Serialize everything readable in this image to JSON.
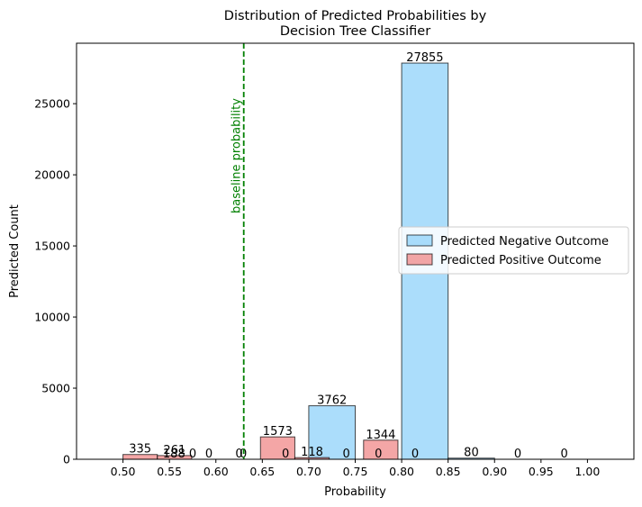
{
  "chart_data": {
    "type": "bar",
    "title": "Distribution of Predicted Probabilities by\nDecision Tree Classifier",
    "xlabel": "Probability",
    "ylabel": "Predicted Count",
    "xlim": [
      0.45,
      1.05
    ],
    "ylim": [
      0,
      29250
    ],
    "xticks": [
      "0.50",
      "0.55",
      "0.60",
      "0.65",
      "0.70",
      "0.75",
      "0.80",
      "0.85",
      "0.90",
      "0.95",
      "1.00"
    ],
    "yticks": [
      "0",
      "5000",
      "10000",
      "15000",
      "20000",
      "25000"
    ],
    "legend_position": "center-right",
    "grid": false,
    "series": [
      {
        "name": "Predicted Negative Outcome",
        "color": "#87cefa",
        "bins": [
          {
            "x0": 0.55,
            "x1": 0.6,
            "value": 0
          },
          {
            "x0": 0.6,
            "x1": 0.65,
            "value": 0
          },
          {
            "x0": 0.65,
            "x1": 0.7,
            "value": 0
          },
          {
            "x0": 0.7,
            "x1": 0.75,
            "value": 3762
          },
          {
            "x0": 0.75,
            "x1": 0.8,
            "value": 0
          },
          {
            "x0": 0.8,
            "x1": 0.85,
            "value": 27855
          },
          {
            "x0": 0.85,
            "x1": 0.9,
            "value": 80
          },
          {
            "x0": 0.9,
            "x1": 0.95,
            "value": 0
          },
          {
            "x0": 0.95,
            "x1": 1.0,
            "value": 0
          }
        ]
      },
      {
        "name": "Predicted Positive Outcome",
        "color": "#f08080",
        "bins": [
          {
            "x0": 0.5,
            "x1": 0.537,
            "value": 335
          },
          {
            "x0": 0.537,
            "x1": 0.574,
            "value": 261
          },
          {
            "x0": 0.574,
            "x1": 0.611,
            "value": 0
          },
          {
            "x0": 0.611,
            "x1": 0.648,
            "value": 0
          },
          {
            "x0": 0.648,
            "x1": 0.685,
            "value": 1573
          },
          {
            "x0": 0.685,
            "x1": 0.722,
            "value": 118
          },
          {
            "x0": 0.722,
            "x1": 0.759,
            "value": 0
          },
          {
            "x0": 0.759,
            "x1": 0.796,
            "value": 1344
          },
          {
            "x0": 0.796,
            "x1": 0.833,
            "value": 0
          }
        ]
      }
    ],
    "extra_labels": [
      {
        "x": 0.555,
        "text": "188"
      }
    ],
    "annotation": {
      "x": 0.63,
      "label": "baseline probability",
      "color": "#008000",
      "style": "dashed"
    }
  }
}
